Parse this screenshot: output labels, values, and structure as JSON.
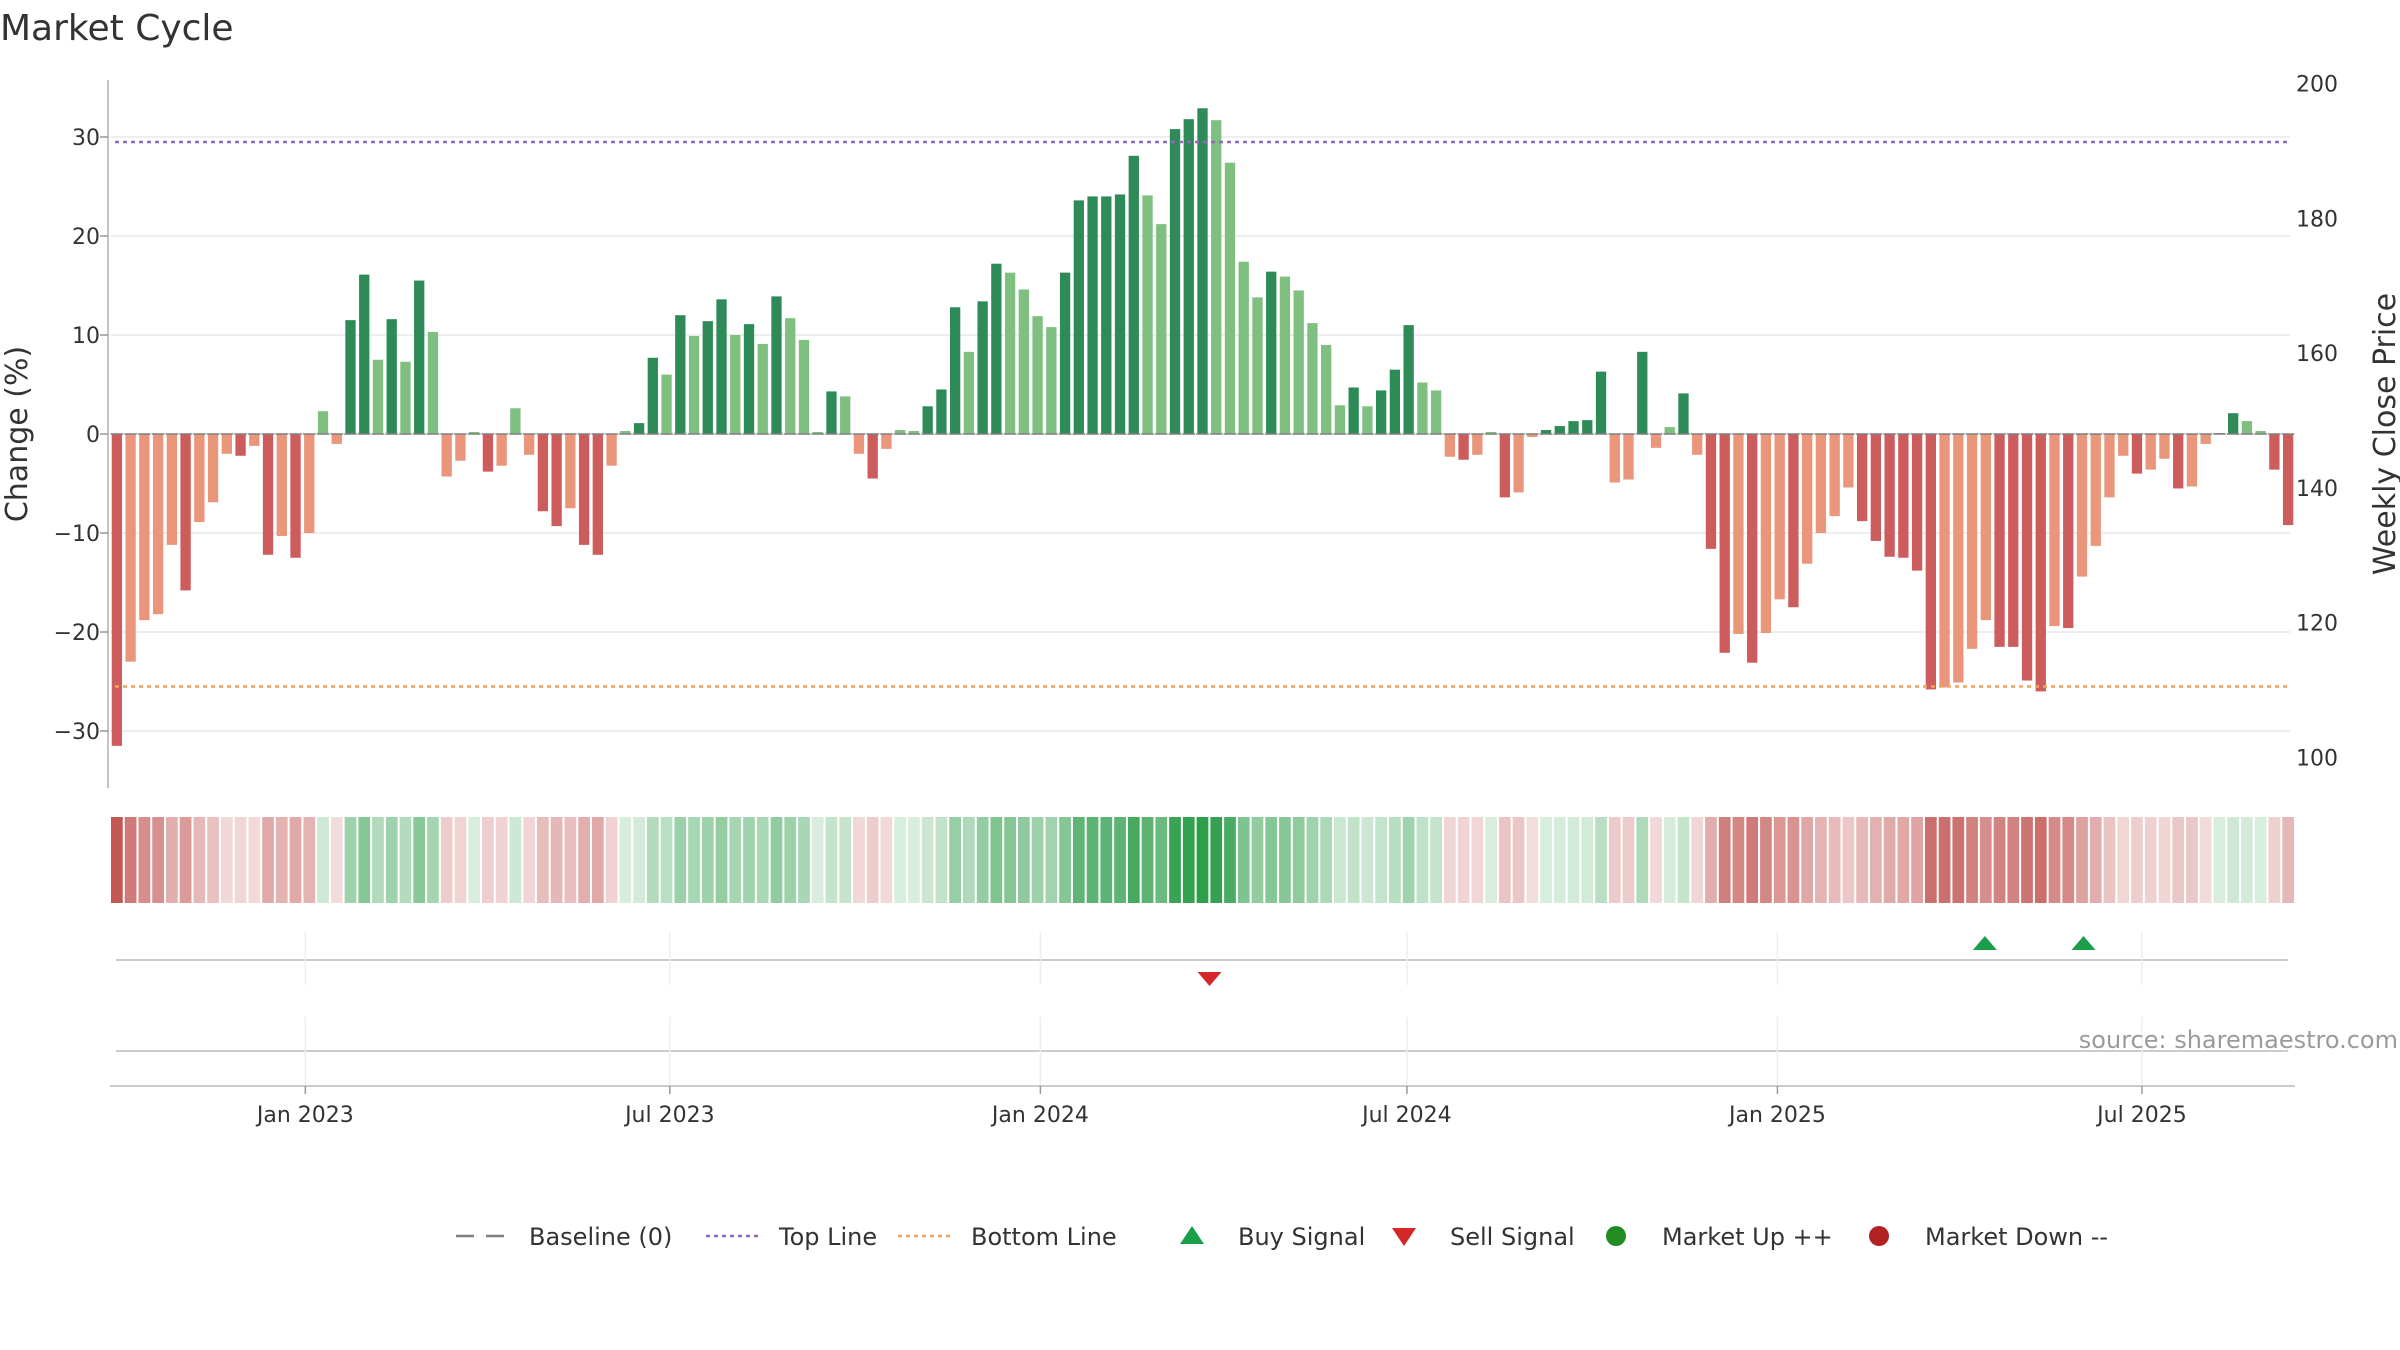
{
  "chart_data": {
    "type": "bar",
    "title": "Market Cycle",
    "ylabel_left": "Change (%)",
    "ylabel_right": "Weekly Close Price",
    "ylim_left": [
      -35,
      36
    ],
    "ylim_right": [
      98,
      201
    ],
    "yticks_left": [
      30,
      20,
      10,
      0,
      -10,
      -20,
      -30
    ],
    "ytick_labels_left": [
      "30",
      "20",
      "10",
      "0",
      "−10",
      "−20",
      "−30"
    ],
    "yticks_right": [
      200,
      180,
      160,
      140,
      120,
      100
    ],
    "ytick_labels_right": [
      "200",
      "180",
      "160",
      "140",
      "120",
      "100"
    ],
    "top_line": 29.5,
    "bottom_line": -25.5,
    "x_start": "2022-09-26",
    "x_end": "2025-09-15",
    "x_ticks": [
      "2023-01-01",
      "2023-07-01",
      "2024-01-01",
      "2024-07-01",
      "2025-01-01",
      "2025-07-01"
    ],
    "x_tick_labels": [
      "Jan 2023",
      "Jul 2023",
      "Jan 2024",
      "Jul 2024",
      "Jan 2025",
      "Jul 2025"
    ],
    "values": [
      -31.5,
      -23,
      -18.8,
      -18.2,
      -11.2,
      -15.8,
      -8.9,
      -6.9,
      -2,
      -2.2,
      -1.2,
      -12.2,
      -10.3,
      -12.5,
      -10,
      2.3,
      -1,
      11.5,
      16.1,
      7.5,
      11.6,
      7.3,
      15.5,
      10.3,
      -4.3,
      -2.7,
      0.2,
      -3.8,
      -3.2,
      2.6,
      -2.1,
      -7.8,
      -9.3,
      -7.5,
      -11.2,
      -12.2,
      -3.2,
      0.3,
      1.1,
      7.7,
      6,
      12,
      9.9,
      11.4,
      13.6,
      10,
      11.1,
      9.1,
      13.9,
      11.7,
      9.5,
      0.2,
      4.3,
      3.8,
      -2,
      -4.5,
      -1.5,
      0.4,
      0.3,
      2.8,
      4.5,
      12.8,
      8.3,
      13.4,
      17.2,
      16.3,
      14.6,
      11.9,
      10.8,
      16.3,
      23.6,
      24,
      24,
      24.2,
      28.1,
      24.1,
      21.2,
      30.8,
      31.8,
      32.9,
      31.7,
      27.4,
      17.4,
      13.8,
      16.4,
      15.9,
      14.5,
      11.2,
      9,
      2.9,
      4.7,
      2.8,
      4.4,
      6.5,
      11,
      5.2,
      4.4,
      -2.3,
      -2.6,
      -2.1,
      0.2,
      -6.4,
      -5.9,
      -0.3,
      0.4,
      0.8,
      1.3,
      1.4,
      6.3,
      -4.9,
      -4.6,
      8.3,
      -1.4,
      0.7,
      4.1,
      -2.1,
      -11.6,
      -22.1,
      -20.2,
      -23.1,
      -20.1,
      -16.7,
      -17.5,
      -13.1,
      -10,
      -8.3,
      -5.4,
      -8.8,
      -10.8,
      -12.4,
      -12.5,
      -13.8,
      -25.8,
      -25.6,
      -25.1,
      -21.7,
      -18.8,
      -21.5,
      -21.5,
      -24.9,
      -26,
      -19.4,
      -19.6,
      -14.4,
      -11.3,
      -6.4,
      -2.2,
      -4,
      -3.6,
      -2.5,
      -5.5,
      -5.3,
      -1,
      0.1,
      2.1,
      1.3,
      0.3,
      -3.6,
      -9.2
    ],
    "strength_band": "weekly cycle strength heat strip (green = up, red = down)",
    "buy_signals": [
      "2025-04-14",
      "2025-06-02"
    ],
    "sell_signals": [
      "2024-03-25"
    ],
    "market_up_events": [],
    "market_down_events": [],
    "source": "source: sharemaestro.com",
    "legend": [
      {
        "label": "Baseline (0)",
        "marker": "dash-line"
      },
      {
        "label": "Top Line",
        "marker": "dotted-line"
      },
      {
        "label": "Bottom Line",
        "marker": "dotted-line"
      },
      {
        "label": "Buy Signal",
        "marker": "triangle-up"
      },
      {
        "label": "Sell Signal",
        "marker": "triangle-down"
      },
      {
        "label": "Market Up ++",
        "marker": "circle"
      },
      {
        "label": "Market Down --",
        "marker": "circle"
      }
    ],
    "legend_position": "bottom-center"
  },
  "colors": {
    "strong_up": "#2e8b57",
    "weak_up": "#7fbf7f",
    "strong_down": "#cd5c5c",
    "weak_down": "#e9967a",
    "top_line": "#9467bd",
    "bottom_line": "#f4a460",
    "buy": "#1a9e4a",
    "sell": "#d62728",
    "market_up": "#228b22",
    "market_down": "#b22222",
    "grid": "#e8e8e8",
    "baseline": "#808080"
  }
}
